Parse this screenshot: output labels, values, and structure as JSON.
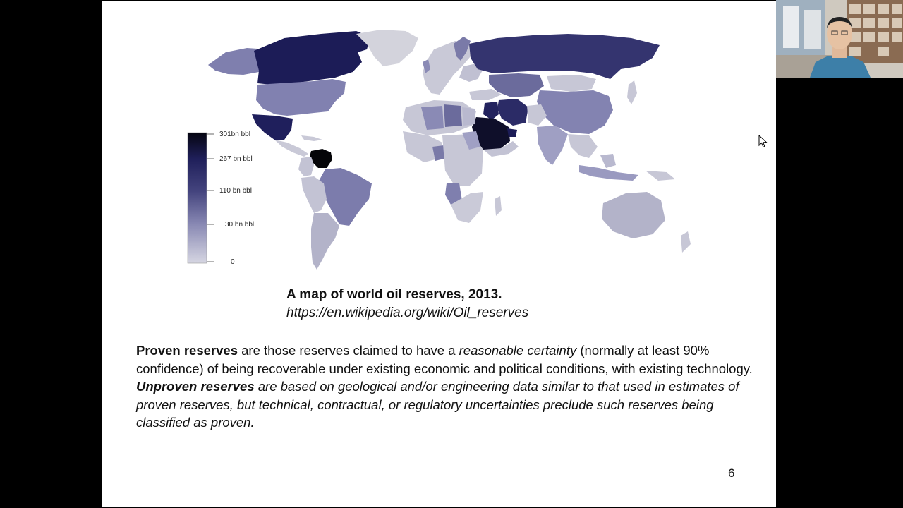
{
  "slide": {
    "map": {
      "legend": {
        "labels": [
          "301bn bbl",
          "267 bn bbl",
          "110 bn bbl",
          "30 bn bbl",
          "0"
        ],
        "colors": [
          "#0a0a18",
          "#1f1f5a",
          "#44447e",
          "#8888b3",
          "#cfcfdc"
        ]
      },
      "map_colors": {
        "very_high": "#0b0b12",
        "high": "#1b1b55",
        "medium_high": "#3d3d7c",
        "medium": "#6f6fa3",
        "low": "#9a9ac0",
        "very_low": "#c7c7d6",
        "none": "#d8d8df"
      }
    },
    "caption": {
      "title": "A map of world oil reserves, 2013.",
      "url": "https://en.wikipedia.org/wiki/Oil_reserves"
    },
    "paragraph1": {
      "term": "Proven reserves",
      "text_a": " are those reserves claimed to have a ",
      "emphasis": "reasonable certainty",
      "text_b": " (normally at least 90% confidence) of being recoverable under existing economic and political conditions, with existing technology."
    },
    "paragraph2": {
      "term": "Unproven reserves",
      "text": " are based on geological and/or engineering data similar to that used in estimates of proven reserves, but technical, contractual, or regulatory uncertainties preclude such reserves being classified as proven."
    },
    "page_number": "6"
  },
  "webcam": {
    "icon": "presenter-video"
  },
  "cursor": {
    "icon": "pointer-cursor"
  }
}
